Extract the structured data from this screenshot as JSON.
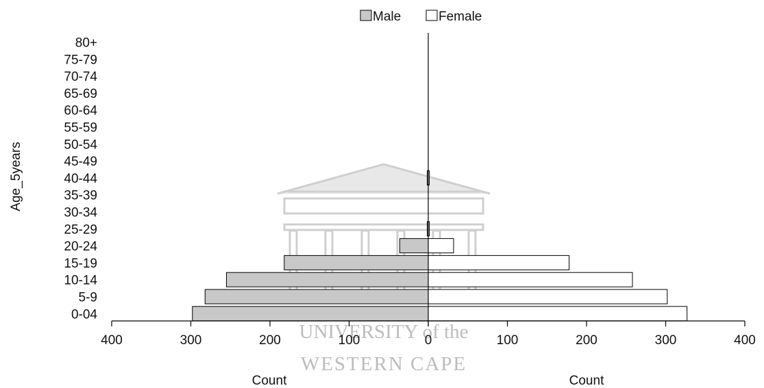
{
  "chart_data": {
    "type": "bar",
    "orientation": "horizontal-population-pyramid",
    "y_axis_label": "Age_5years",
    "categories": [
      "80+",
      "75-79",
      "70-74",
      "65-69",
      "60-64",
      "55-59",
      "50-54",
      "45-49",
      "40-44",
      "35-39",
      "30-34",
      "25-29",
      "20-24",
      "15-19",
      "10-14",
      "5-9",
      "0-04"
    ],
    "series": [
      {
        "name": "Male",
        "color": "#c8c8c8",
        "values": [
          0,
          0,
          0,
          0,
          0,
          0,
          0,
          0,
          1,
          0,
          0,
          1,
          36,
          182,
          255,
          282,
          298
        ]
      },
      {
        "name": "Female",
        "color": "#ffffff",
        "values": [
          0,
          0,
          0,
          0,
          0,
          0,
          0,
          0,
          1,
          0,
          0,
          1,
          32,
          178,
          258,
          302,
          327
        ]
      }
    ],
    "x_ticks_left": [
      "400",
      "300",
      "200",
      "100",
      "0"
    ],
    "x_ticks_right": [
      "0",
      "100",
      "200",
      "300",
      "400"
    ],
    "xlim": [
      0,
      400
    ],
    "x_axis_label_left": "Count",
    "x_axis_label_right": "Count",
    "legend_position": "top-center",
    "grid": false
  },
  "watermark": {
    "line1": "UNIVERSITY of the",
    "line2": "WESTERN CAPE"
  }
}
